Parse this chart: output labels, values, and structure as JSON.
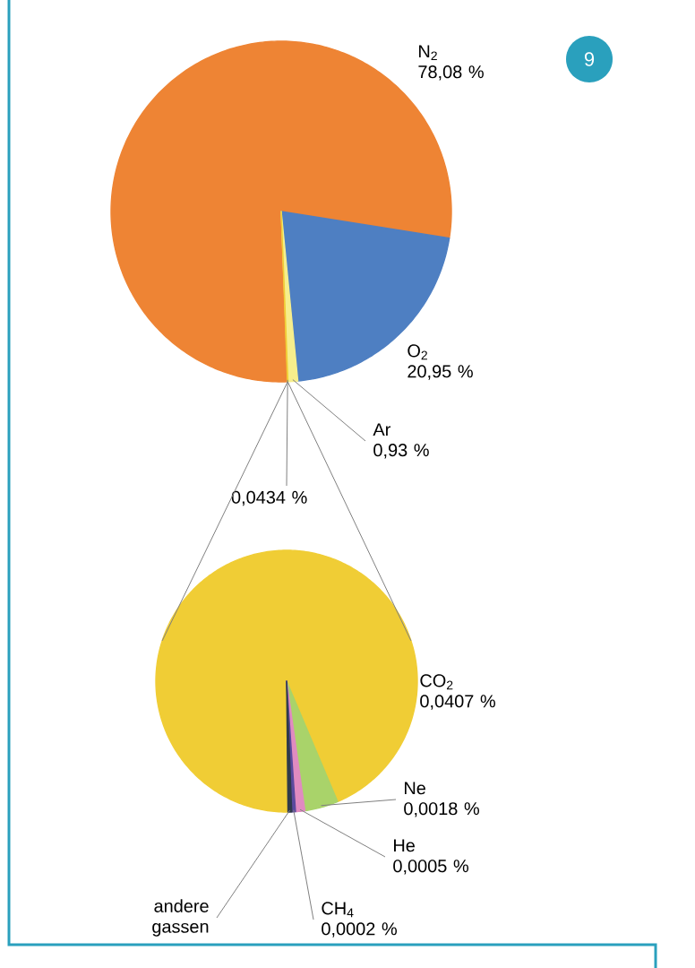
{
  "chart_data": [
    {
      "type": "pie",
      "categories": [
        "N$_{2}$",
        "O$_{2}$",
        "Ar",
        null
      ],
      "values": [
        78.08,
        20.95,
        0.93,
        0.0434
      ],
      "value_labels": [
        "78,08 %",
        "20,95 %",
        "0,93 %",
        "0,0434 %"
      ],
      "colors": [
        "#ee8434",
        "#4e7fc2",
        "#f6ee8c",
        "#f0cd35"
      ],
      "annotations": [
        "9"
      ]
    },
    {
      "type": "pie",
      "categories": [
        "CO$_{2}$",
        "Ne",
        "He",
        "CH$_{4}$",
        "andere gassen"
      ],
      "values": [
        0.0407,
        0.0018,
        0.0005,
        0.0002,
        0.0002
      ],
      "value_labels": [
        "0,0407 %",
        "0,0018 %",
        "0,0005 %",
        "0,0002 %",
        null
      ],
      "colors": [
        "#f0cd35",
        "#a9d36a",
        "#e08bc0",
        "#5b4a9e",
        "#2f3a4a"
      ]
    }
  ]
}
